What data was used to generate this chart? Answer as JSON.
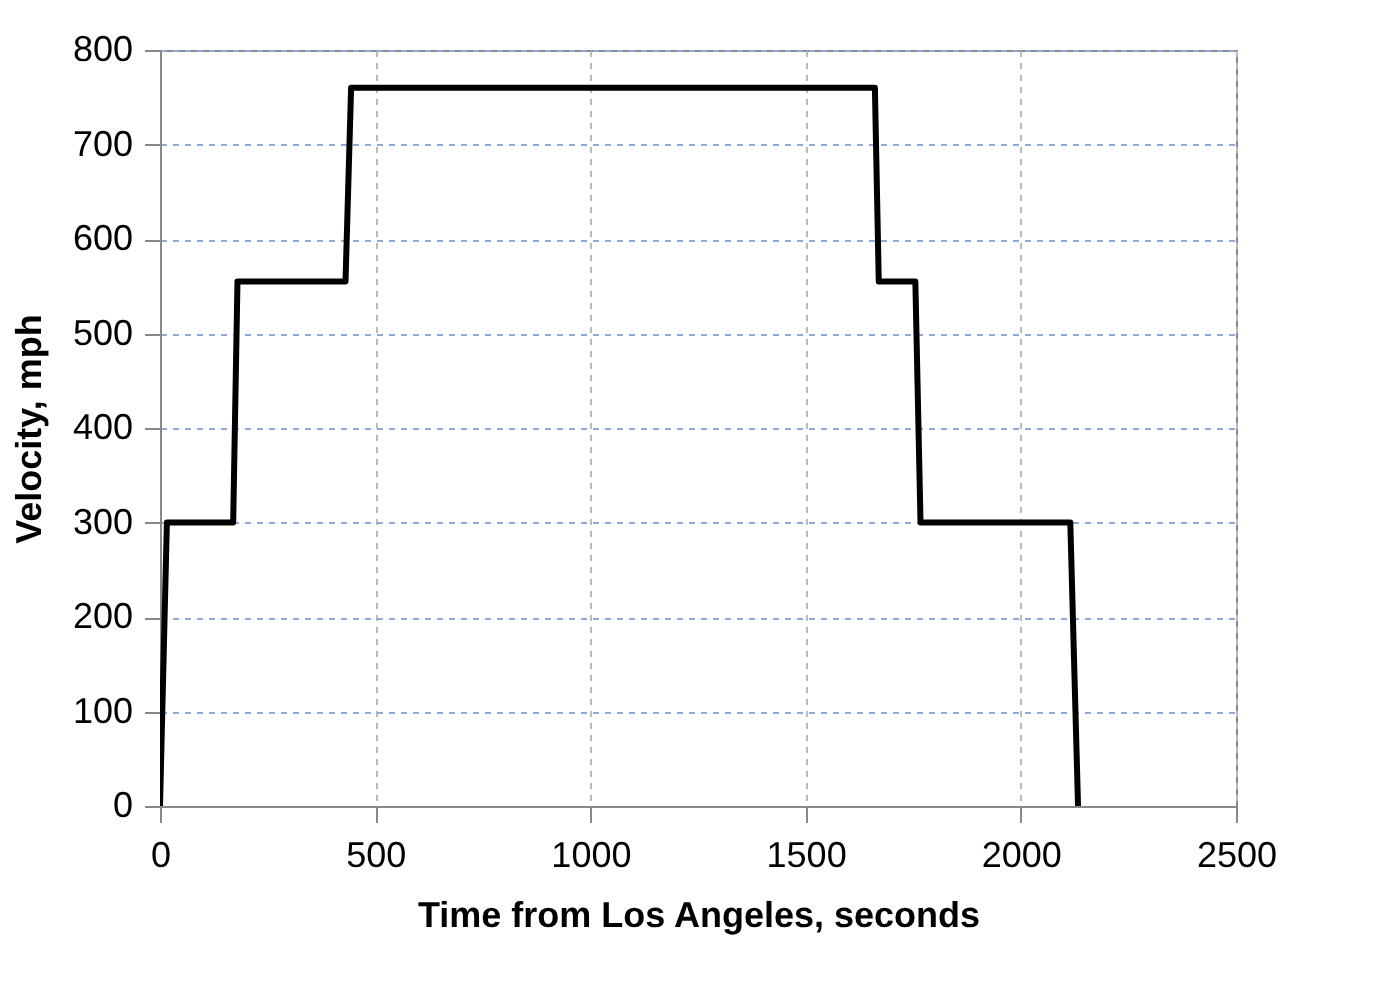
{
  "chart_data": {
    "type": "line",
    "xlabel": "Time from Los Angeles, seconds",
    "ylabel": "Velocity, mph",
    "x": [
      0,
      16,
      170,
      180,
      431,
      444,
      1661,
      1670,
      1755,
      1767,
      2115,
      2133
    ],
    "series": [
      {
        "color": "#000000",
        "values": [
          0,
          300,
          300,
          555,
          555,
          760,
          760,
          555,
          555,
          300,
          300,
          0
        ]
      }
    ],
    "xlim": [
      0,
      2500
    ],
    "xticks": [
      0,
      500,
      1000,
      1500,
      2000,
      2500
    ],
    "ylim": [
      0,
      800
    ],
    "yticks": [
      0,
      100,
      200,
      300,
      400,
      500,
      600,
      700,
      800
    ],
    "grid": true,
    "marker": "none",
    "line_style": "solid"
  }
}
